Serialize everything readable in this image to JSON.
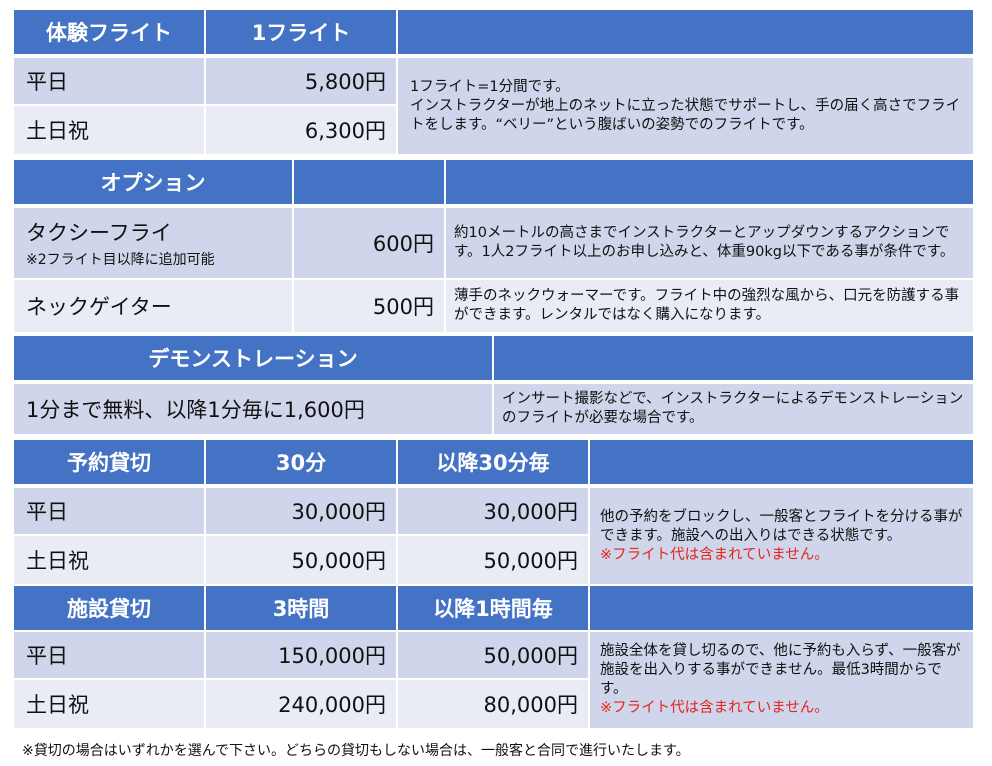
{
  "trial": {
    "header": "体験フライト",
    "col1": "1フライト",
    "rows": [
      {
        "label": "平日",
        "price": "5,800円"
      },
      {
        "label": "土日祝",
        "price": "6,300円"
      }
    ],
    "desc_line1": "1フライト=1分間です。",
    "desc_line2": "インストラクターが地上のネットに立った状態でサポートし、手の届く高さでフライトをします。“ベリー”という腹ばいの姿勢でのフライトです。"
  },
  "options": {
    "header": "オプション",
    "rows": [
      {
        "label": "タクシーフライ",
        "note": "※2フライト目以降に追加可能",
        "price": "600円",
        "desc": "約10メートルの高さまでインストラクターとアップダウンするアクションです。1人2フライト以上のお申し込みと、体重90kg以下である事が条件です。"
      },
      {
        "label": "ネックゲイター",
        "price": "500円",
        "desc": "薄手のネックウォーマーです。フライト中の強烈な風から、口元を防護する事ができます。レンタルではなく購入になります。"
      }
    ]
  },
  "demo": {
    "header": "デモンストレーション",
    "text": "1分まで無料、以降1分毎に1,600円",
    "desc": "インサート撮影などで、インストラクターによるデモンストレーションのフライトが必要な場合です。"
  },
  "reserve": {
    "header": "予約貸切",
    "col1": "30分",
    "col2": "以降30分毎",
    "rows": [
      {
        "label": "平日",
        "price1": "30,000円",
        "price2": "30,000円"
      },
      {
        "label": "土日祝",
        "price1": "50,000円",
        "price2": "50,000円"
      }
    ],
    "desc": "他の予約をブロックし、一般客とフライトを分ける事ができます。施設への出入りはできる状態です。",
    "warn": "※フライト代は含まれていません。"
  },
  "facility": {
    "header": "施設貸切",
    "col1": "3時間",
    "col2": "以降1時間毎",
    "rows": [
      {
        "label": "平日",
        "price1": "150,000円",
        "price2": "50,000円"
      },
      {
        "label": "土日祝",
        "price1": "240,000円",
        "price2": "80,000円"
      }
    ],
    "desc": "施設全体を貸し切るので、他に予約も入らず、一般客が施設を出入りする事ができません。最低3時間からです。",
    "warn": "※フライト代は含まれていません。"
  },
  "footer": "※貸切の場合はいずれかを選んで下さい。どちらの貸切もしない場合は、一般客と合同で進行いたします。",
  "colors": {
    "header": "#4472c4",
    "row_dark": "#cfd5ea",
    "row_light": "#e9ebf5",
    "warn": "#e8231b"
  }
}
